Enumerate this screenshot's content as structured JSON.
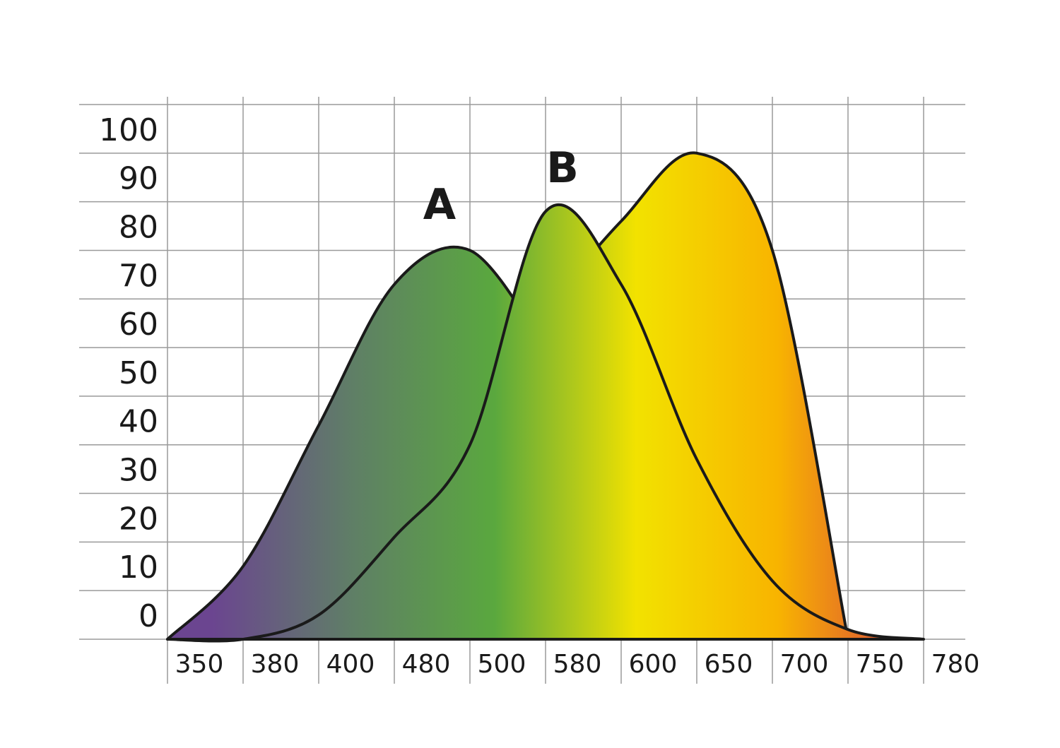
{
  "chart_data": {
    "type": "area",
    "categories": [
      "350",
      "380",
      "400",
      "480",
      "500",
      "580",
      "600",
      "650",
      "700",
      "750",
      "780"
    ],
    "series": [
      {
        "values": [
          null,
          null,
          null,
          null,
          null,
          68,
          86,
          100,
          80,
          0,
          null
        ]
      },
      {
        "name": "A",
        "values": [
          0,
          15,
          44,
          73,
          80,
          60,
          null,
          null,
          null,
          null,
          null
        ]
      },
      {
        "name": "B",
        "values": [
          0,
          0,
          5,
          21,
          40,
          88,
          73,
          37,
          12,
          2,
          0
        ]
      }
    ],
    "gradient": [
      "#6b4590",
      "#5f7f66",
      "#5aa83e",
      "#f2e200",
      "#f8b400",
      "#d84040"
    ],
    "ylim": [
      0,
      110
    ],
    "yticks": [
      0,
      10,
      20,
      30,
      40,
      50,
      60,
      70,
      80,
      90,
      100
    ],
    "grid": true
  }
}
